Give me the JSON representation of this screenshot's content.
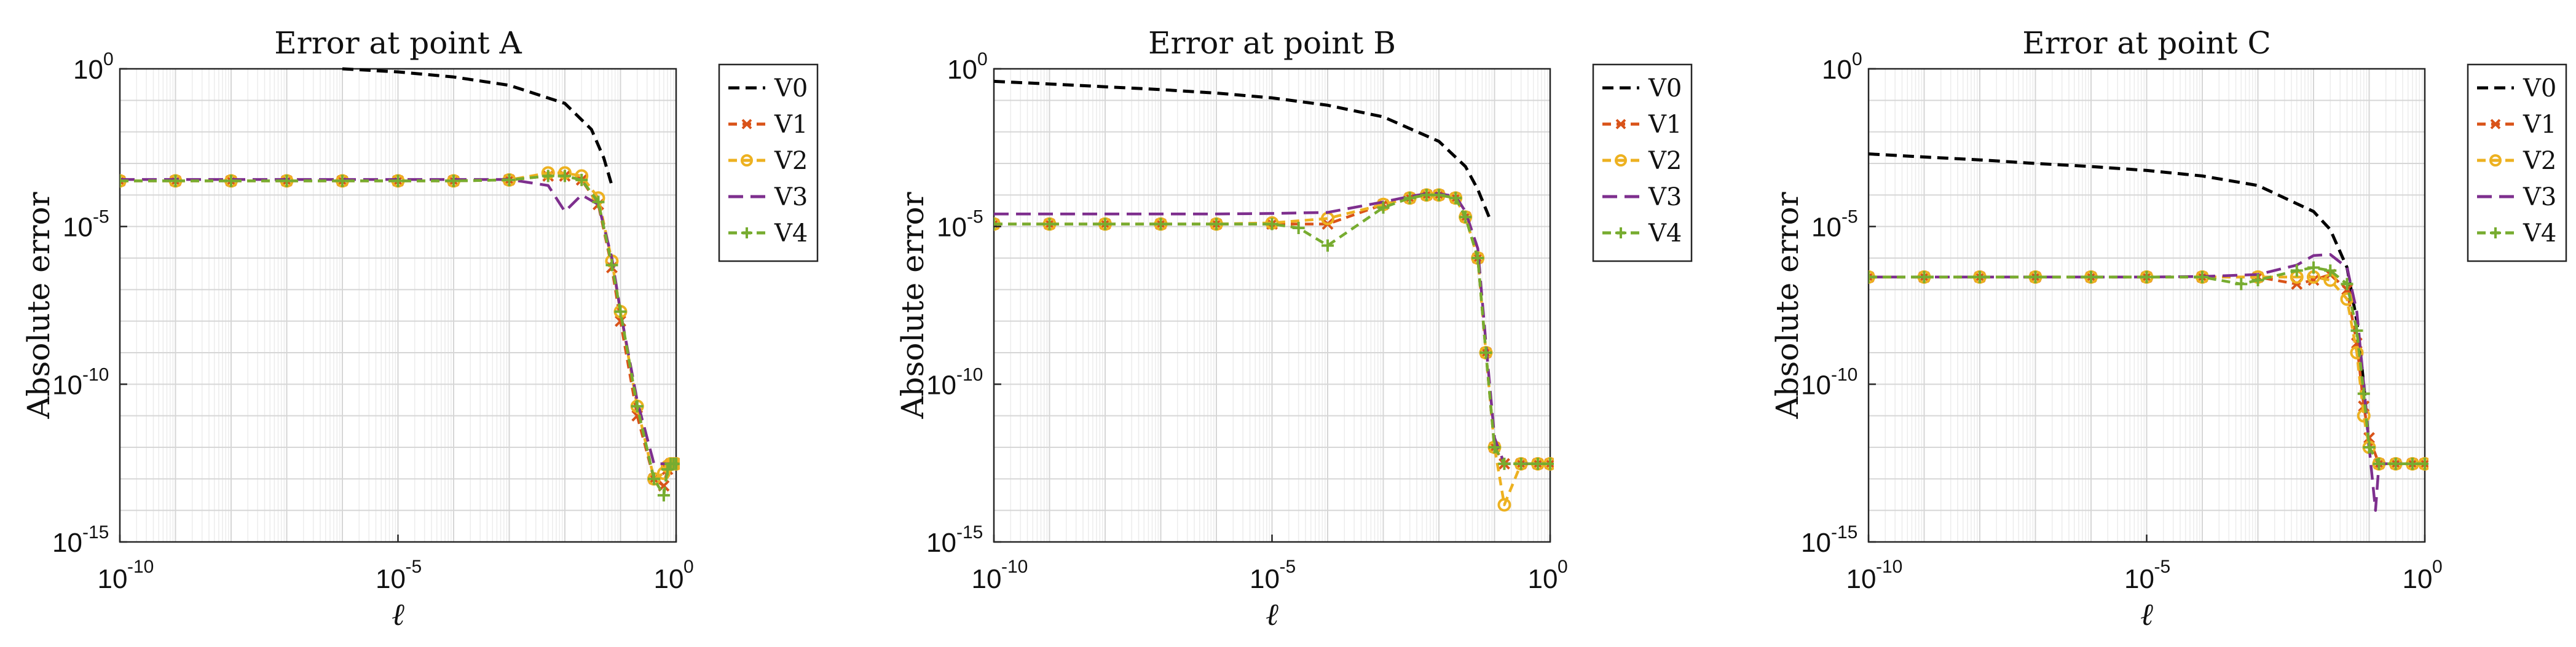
{
  "chart_data": [
    {
      "type": "line",
      "title": "Error at point A",
      "xlabel": "ℓ",
      "ylabel": "Absolute error",
      "xscale": "log",
      "yscale": "log",
      "xlim": [
        1e-10,
        1
      ],
      "ylim": [
        1e-15,
        1
      ],
      "xticks": [
        {
          "base": "10",
          "exp": "-10"
        },
        {
          "base": "10",
          "exp": "-5"
        },
        {
          "base": "10",
          "exp": "0"
        }
      ],
      "yticks": [
        {
          "base": "10",
          "exp": "0"
        },
        {
          "base": "10",
          "exp": "-5"
        },
        {
          "base": "10",
          "exp": "-10"
        },
        {
          "base": "10",
          "exp": "-15"
        }
      ],
      "grid": true,
      "legend_position": "outside-right",
      "series": [
        {
          "name": "V0",
          "color": "#000000",
          "marker": "none",
          "x": [
            1e-06,
            1e-05,
            0.0001,
            0.001,
            0.01,
            0.03,
            0.05,
            0.07
          ],
          "y": [
            1,
            0.8,
            0.55,
            0.3,
            0.08,
            0.012,
            0.0015,
            0.0002
          ]
        },
        {
          "name": "V1",
          "color": "#d95319",
          "marker": "x",
          "x": [
            1e-10,
            1e-09,
            1e-08,
            1e-07,
            1e-06,
            1e-05,
            0.0001,
            0.001,
            0.005,
            0.01,
            0.02,
            0.04,
            0.07,
            0.1,
            0.2,
            0.4,
            0.6,
            0.7,
            0.8,
            0.9,
            1.0
          ],
          "y": [
            0.00028,
            0.00028,
            0.00028,
            0.00028,
            0.00028,
            0.00028,
            0.00028,
            0.0003,
            0.0004,
            0.0004,
            0.0003,
            5e-05,
            5e-07,
            1e-08,
            1e-11,
            1e-13,
            6e-14,
            2e-13,
            3e-13,
            3e-13,
            3e-13
          ]
        },
        {
          "name": "V2",
          "color": "#edb120",
          "marker": "o",
          "x": [
            1e-10,
            1e-09,
            1e-08,
            1e-07,
            1e-06,
            1e-05,
            0.0001,
            0.001,
            0.005,
            0.01,
            0.02,
            0.04,
            0.07,
            0.1,
            0.2,
            0.4,
            0.6,
            0.7,
            0.8,
            0.9,
            1.0
          ],
          "y": [
            0.00028,
            0.00028,
            0.00028,
            0.00028,
            0.00028,
            0.00028,
            0.00028,
            0.0003,
            0.0005,
            0.0005,
            0.0004,
            8e-05,
            8e-07,
            2e-08,
            2e-11,
            1e-13,
            1.5e-13,
            2.5e-13,
            3e-13,
            3e-13,
            3e-13
          ]
        },
        {
          "name": "V3",
          "color": "#7e2f8e",
          "marker": "none",
          "x": [
            1e-10,
            1e-09,
            1e-08,
            1e-07,
            1e-06,
            1e-05,
            0.0001,
            0.001,
            0.005,
            0.01,
            0.02,
            0.04,
            0.07,
            0.1,
            0.2,
            0.4,
            0.6,
            0.7,
            0.8,
            0.9,
            1.0
          ],
          "y": [
            0.00031,
            0.00031,
            0.00031,
            0.00031,
            0.00031,
            0.00031,
            0.00031,
            0.00031,
            0.0002,
            3e-05,
            0.0001,
            5e-05,
            1e-06,
            2e-08,
            3e-11,
            3e-13,
            3e-13,
            3e-13,
            3e-13,
            3e-13,
            3e-13
          ]
        },
        {
          "name": "V4",
          "color": "#77ac30",
          "marker": "+",
          "x": [
            1e-10,
            1e-09,
            1e-08,
            1e-07,
            1e-06,
            1e-05,
            0.0001,
            0.001,
            0.005,
            0.01,
            0.02,
            0.04,
            0.07,
            0.1,
            0.2,
            0.4,
            0.6,
            0.7,
            0.8,
            0.9,
            1.0
          ],
          "y": [
            0.00028,
            0.00028,
            0.00028,
            0.00028,
            0.00028,
            0.00028,
            0.00028,
            0.0003,
            0.0004,
            0.0004,
            0.0003,
            6e-05,
            6e-07,
            2e-08,
            2e-11,
            1e-13,
            3e-14,
            2e-13,
            3e-13,
            3e-13,
            3e-13
          ]
        }
      ]
    },
    {
      "type": "line",
      "title": "Error at point B",
      "xlabel": "ℓ",
      "ylabel": "Absolute error",
      "xscale": "log",
      "yscale": "log",
      "xlim": [
        1e-10,
        1
      ],
      "ylim": [
        1e-15,
        1
      ],
      "xticks": [
        {
          "base": "10",
          "exp": "-10"
        },
        {
          "base": "10",
          "exp": "-5"
        },
        {
          "base": "10",
          "exp": "0"
        }
      ],
      "yticks": [
        {
          "base": "10",
          "exp": "0"
        },
        {
          "base": "10",
          "exp": "-5"
        },
        {
          "base": "10",
          "exp": "-10"
        },
        {
          "base": "10",
          "exp": "-15"
        }
      ],
      "grid": true,
      "legend_position": "outside-right",
      "series": [
        {
          "name": "V0",
          "color": "#000000",
          "marker": "none",
          "x": [
            1e-10,
            1e-09,
            1e-08,
            1e-07,
            1e-06,
            1e-05,
            0.0001,
            0.001,
            0.01,
            0.03,
            0.05,
            0.08
          ],
          "y": [
            0.4,
            0.33,
            0.27,
            0.22,
            0.17,
            0.12,
            0.07,
            0.03,
            0.005,
            0.0008,
            0.00015,
            2e-05
          ]
        },
        {
          "name": "V1",
          "color": "#d95319",
          "marker": "x",
          "x": [
            1e-10,
            1e-09,
            1e-08,
            1e-07,
            1e-06,
            1e-05,
            0.0001,
            0.001,
            0.003,
            0.006,
            0.01,
            0.02,
            0.03,
            0.05,
            0.07,
            0.1,
            0.15,
            0.3,
            0.6,
            1.0
          ],
          "y": [
            1.2e-05,
            1.2e-05,
            1.2e-05,
            1.2e-05,
            1.2e-05,
            1.2e-05,
            1.2e-05,
            5e-05,
            8e-05,
            0.0001,
            0.0001,
            8e-05,
            2e-05,
            1e-06,
            1e-09,
            1e-12,
            3e-13,
            3e-13,
            3e-13,
            3e-13
          ]
        },
        {
          "name": "V2",
          "color": "#edb120",
          "marker": "o",
          "x": [
            1e-10,
            1e-09,
            1e-08,
            1e-07,
            1e-06,
            1e-05,
            0.0001,
            0.001,
            0.003,
            0.006,
            0.01,
            0.02,
            0.03,
            0.05,
            0.07,
            0.1,
            0.15,
            0.3,
            0.6,
            1.0
          ],
          "y": [
            1.2e-05,
            1.2e-05,
            1.2e-05,
            1.2e-05,
            1.2e-05,
            1.3e-05,
            1.8e-05,
            5e-05,
            8e-05,
            0.0001,
            0.0001,
            8e-05,
            2e-05,
            1e-06,
            1e-09,
            1e-12,
            1.5e-14,
            3e-13,
            3e-13,
            3e-13
          ]
        },
        {
          "name": "V3",
          "color": "#7e2f8e",
          "marker": "none",
          "x": [
            1e-10,
            1e-09,
            1e-08,
            1e-07,
            1e-06,
            1e-05,
            0.0001,
            0.001,
            0.003,
            0.006,
            0.01,
            0.02,
            0.03,
            0.05,
            0.07,
            0.1,
            0.15,
            0.3,
            0.6,
            1.0
          ],
          "y": [
            2.5e-05,
            2.5e-05,
            2.5e-05,
            2.5e-05,
            2.5e-05,
            2.6e-05,
            2.8e-05,
            6e-05,
            9e-05,
            0.00011,
            0.00011,
            9e-05,
            3e-05,
            2e-06,
            2e-09,
            2e-12,
            3e-13,
            3e-13,
            3e-13,
            3e-13
          ]
        },
        {
          "name": "V4",
          "color": "#77ac30",
          "marker": "+",
          "x": [
            1e-10,
            1e-09,
            1e-08,
            1e-07,
            1e-06,
            1e-05,
            3e-05,
            0.0001,
            0.001,
            0.003,
            0.006,
            0.01,
            0.02,
            0.03,
            0.05,
            0.07,
            0.1,
            0.15,
            0.3,
            0.6,
            1.0
          ],
          "y": [
            1.2e-05,
            1.2e-05,
            1.2e-05,
            1.2e-05,
            1.2e-05,
            1.2e-05,
            9e-06,
            2.5e-06,
            4e-05,
            8e-05,
            0.0001,
            0.0001,
            8e-05,
            2e-05,
            1e-06,
            1e-09,
            1e-12,
            3e-13,
            3e-13,
            3e-13,
            3e-13
          ]
        }
      ]
    },
    {
      "type": "line",
      "title": "Error at point C",
      "xlabel": "ℓ",
      "ylabel": "Absolute error",
      "xscale": "log",
      "yscale": "log",
      "xlim": [
        1e-10,
        1
      ],
      "ylim": [
        1e-15,
        1
      ],
      "xticks": [
        {
          "base": "10",
          "exp": "-10"
        },
        {
          "base": "10",
          "exp": "-5"
        },
        {
          "base": "10",
          "exp": "0"
        }
      ],
      "yticks": [
        {
          "base": "10",
          "exp": "0"
        },
        {
          "base": "10",
          "exp": "-5"
        },
        {
          "base": "10",
          "exp": "-10"
        },
        {
          "base": "10",
          "exp": "-15"
        }
      ],
      "grid": true,
      "legend_position": "outside-right",
      "series": [
        {
          "name": "V0",
          "color": "#000000",
          "marker": "none",
          "x": [
            1e-10,
            1e-09,
            1e-08,
            1e-07,
            1e-06,
            1e-05,
            0.0001,
            0.001,
            0.01,
            0.02,
            0.04,
            0.06,
            0.08,
            0.1
          ],
          "y": [
            0.002,
            0.0016,
            0.0013,
            0.001,
            0.0008,
            0.0006,
            0.0004,
            0.0002,
            3e-05,
            8e-06,
            5e-07,
            1e-08,
            1e-10,
            1e-12
          ]
        },
        {
          "name": "V1",
          "color": "#d95319",
          "marker": "x",
          "x": [
            1e-10,
            1e-09,
            1e-08,
            1e-07,
            1e-06,
            1e-05,
            0.0001,
            0.001,
            0.005,
            0.01,
            0.02,
            0.04,
            0.06,
            0.08,
            0.1,
            0.15,
            0.3,
            0.6,
            1.0
          ],
          "y": [
            2.5e-07,
            2.5e-07,
            2.5e-07,
            2.5e-07,
            2.5e-07,
            2.5e-07,
            2.5e-07,
            2.5e-07,
            1.5e-07,
            2e-07,
            3e-07,
            1e-07,
            2e-09,
            2e-11,
            2e-12,
            3e-13,
            3e-13,
            3e-13,
            3e-13
          ]
        },
        {
          "name": "V2",
          "color": "#edb120",
          "marker": "o",
          "x": [
            1e-10,
            1e-09,
            1e-08,
            1e-07,
            1e-06,
            1e-05,
            0.0001,
            0.001,
            0.005,
            0.01,
            0.02,
            0.04,
            0.06,
            0.08,
            0.1,
            0.15,
            0.3,
            0.6,
            1.0
          ],
          "y": [
            2.5e-07,
            2.5e-07,
            2.5e-07,
            2.5e-07,
            2.5e-07,
            2.5e-07,
            2.5e-07,
            2.5e-07,
            2.5e-07,
            2.5e-07,
            2e-07,
            5e-08,
            1e-09,
            1e-11,
            1e-12,
            3e-13,
            3e-13,
            3e-13,
            3e-13
          ]
        },
        {
          "name": "V3",
          "color": "#7e2f8e",
          "marker": "none",
          "x": [
            1e-10,
            1e-09,
            1e-08,
            1e-07,
            1e-06,
            1e-05,
            0.0001,
            0.001,
            0.005,
            0.01,
            0.02,
            0.04,
            0.06,
            0.08,
            0.1,
            0.13,
            0.15,
            0.3,
            0.6,
            1.0
          ],
          "y": [
            2.5e-07,
            2.5e-07,
            2.5e-07,
            2.5e-07,
            2.5e-07,
            2.5e-07,
            2.6e-07,
            3e-07,
            6e-07,
            1.2e-06,
            1.3e-06,
            5e-07,
            2e-08,
            1e-10,
            1e-12,
            1e-14,
            3e-13,
            3e-13,
            3e-13,
            3e-13
          ]
        },
        {
          "name": "V4",
          "color": "#77ac30",
          "marker": "+",
          "x": [
            1e-10,
            1e-09,
            1e-08,
            1e-07,
            1e-06,
            1e-05,
            0.0001,
            0.0005,
            0.001,
            0.005,
            0.01,
            0.02,
            0.04,
            0.06,
            0.08,
            0.1,
            0.15,
            0.3,
            0.6,
            1.0
          ],
          "y": [
            2.5e-07,
            2.5e-07,
            2.5e-07,
            2.5e-07,
            2.5e-07,
            2.5e-07,
            2.5e-07,
            1.5e-07,
            2e-07,
            4e-07,
            5e-07,
            4e-07,
            1.5e-07,
            5e-09,
            5e-11,
            1e-12,
            3e-13,
            3e-13,
            3e-13,
            3e-13
          ]
        }
      ]
    }
  ]
}
